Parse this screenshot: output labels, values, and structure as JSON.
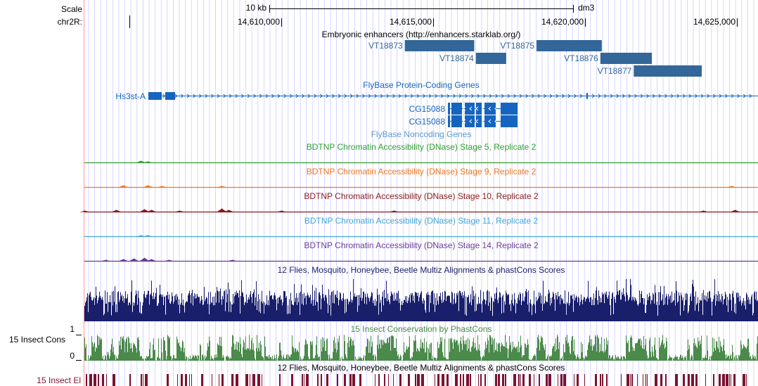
{
  "ruler": {
    "scale_label": "Scale",
    "scale_value": "10 kb",
    "assembly": "dm3",
    "chrom_label": "chr2R:",
    "positions": [
      "14,610,000",
      "14,615,000",
      "14,620,000",
      "14,625,000"
    ]
  },
  "colors": {
    "guide_lines": "#ccccff",
    "left_edge": "#ff9999",
    "enhancer": "#336699",
    "gene": "#1565c0",
    "stage5": "#33a033",
    "stage9": "#f07722",
    "stage10": "#8b1a1a",
    "stage11": "#44a6d6",
    "stage14": "#6a3d9a",
    "multiz": "#1a1f6b",
    "phastcons": "#4a8a4a",
    "elements": "#7a1330"
  },
  "tracks": {
    "enhancers": {
      "title": "Embryonic enhancers (http://enhancers.starklab.org/)",
      "items": [
        {
          "name": "VT18873",
          "start": 14614067,
          "end": 14616353
        },
        {
          "name": "VT18874",
          "start": 14616407,
          "end": 14617405
        },
        {
          "name": "VT18875",
          "start": 14618405,
          "end": 14620552
        },
        {
          "name": "VT18876",
          "start": 14620505,
          "end": 14622201
        },
        {
          "name": "VT18877",
          "start": 14621605,
          "end": 14623842
        }
      ]
    },
    "genes": {
      "title": "FlyBase Protein-Coding Genes",
      "hs3st": {
        "name": "Hs3st-A",
        "start": 14608150,
        "end": 14626400
      },
      "cg15088_1": {
        "name": "CG15088"
      },
      "cg15088_2": {
        "name": "CG15088"
      }
    },
    "noncoding": {
      "title": "FlyBase Noncoding Genes"
    },
    "dnase": [
      {
        "title": "BDTNP Chromatin Accessibility (DNase) Stage 5, Replicate 2"
      },
      {
        "title": "BDTNP Chromatin Accessibility (DNase) Stage 9, Replicate 2"
      },
      {
        "title": "BDTNP Chromatin Accessibility (DNase) Stage 10, Replicate 2"
      },
      {
        "title": "BDTNP Chromatin Accessibility (DNase) Stage 11, Replicate 2"
      },
      {
        "title": "BDTNP Chromatin Accessibility (DNase) Stage 14, Replicate 2"
      }
    ],
    "multiz": {
      "title": "12 Flies, Mosquito, Honeybee, Beetle Multiz Alignments & phastCons Scores"
    },
    "phastcons": {
      "title": "15 Insect Conservation by PhastCons",
      "side_label": "15 Insect Cons",
      "ymax_label": "1",
      "ymin_label": "0"
    },
    "elements": {
      "title": "12 Flies, Mosquito, Honeybee, Beetle Multiz Alignments & phastCons Scores",
      "side_label": "15 Insect El"
    }
  }
}
